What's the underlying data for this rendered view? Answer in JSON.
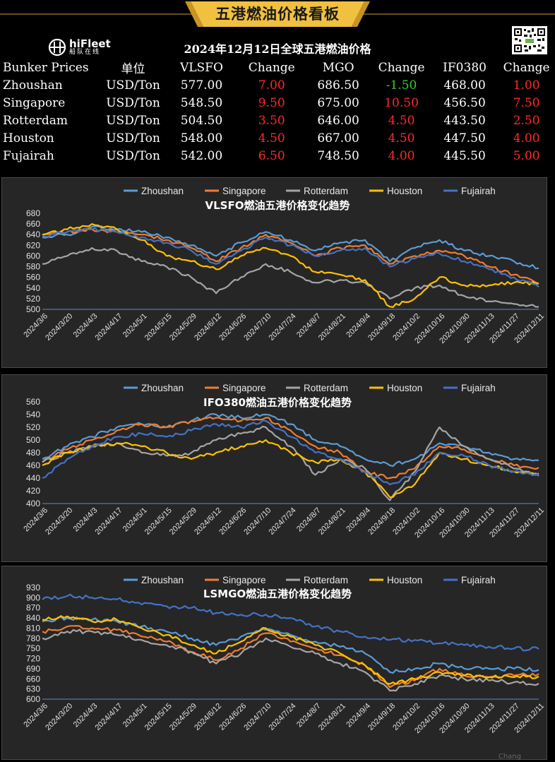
{
  "banner": {
    "title": "五港燃油价格看板"
  },
  "logo": {
    "name": "hiFleet",
    "sub": "船队在线"
  },
  "subtitle": "2024年12月12日全球五港燃油价格",
  "table": {
    "headers": [
      "Bunker Prices",
      "单位",
      "VLSFO",
      "Change",
      "MGO",
      "Change",
      "IF0380",
      "Change"
    ],
    "rows": [
      {
        "port": "Zhoushan",
        "unit": "USD/Ton",
        "vlsfo": "577.00",
        "vlsfo_change": "7.00",
        "mgo": "686.50",
        "mgo_change": "-1.50",
        "ifo380": "468.00",
        "ifo380_change": "1.00"
      },
      {
        "port": "Singapore",
        "unit": "USD/Ton",
        "vlsfo": "548.50",
        "vlsfo_change": "9.50",
        "mgo": "675.00",
        "mgo_change": "10.50",
        "ifo380": "456.50",
        "ifo380_change": "7.50"
      },
      {
        "port": "Rotterdam",
        "unit": "USD/Ton",
        "vlsfo": "504.50",
        "vlsfo_change": "3.50",
        "mgo": "646.00",
        "mgo_change": "4.50",
        "ifo380": "443.50",
        "ifo380_change": "2.50"
      },
      {
        "port": "Houston",
        "unit": "USD/Ton",
        "vlsfo": "548.00",
        "vlsfo_change": "4.50",
        "mgo": "667.00",
        "mgo_change": "4.50",
        "ifo380": "447.50",
        "ifo380_change": "4.00"
      },
      {
        "port": "Fujairah",
        "unit": "USD/Ton",
        "vlsfo": "542.00",
        "vlsfo_change": "6.50",
        "mgo": "748.50",
        "mgo_change": "4.00",
        "ifo380": "445.50",
        "ifo380_change": "5.00"
      }
    ]
  },
  "colors": {
    "up": "#ff2a2a",
    "down": "#33cc33",
    "banner": "#f0c040",
    "gridline": "#3a3a3a",
    "axis": "#bbbbbb"
  },
  "footer": "Chang",
  "chart_data": [
    {
      "type": "line",
      "title": "VLSFO燃油五港价格变化趋势",
      "xlabel": "",
      "ylabel": "",
      "x_ticks": [
        "2024/3/6",
        "2024/3/20",
        "2024/4/3",
        "2024/4/17",
        "2024/5/1",
        "2024/5/15",
        "2024/5/29",
        "2024/6/12",
        "2024/6/26",
        "2024/7/10",
        "2024/7/24",
        "2024/8/7",
        "2024/8/21",
        "2024/9/4",
        "2024/9/18",
        "2024/10/2",
        "2024/10/16",
        "2024/10/30",
        "2024/11/13",
        "2024/11/27",
        "2024/12/11"
      ],
      "y_ticks": [
        500,
        520,
        540,
        560,
        580,
        600,
        620,
        640,
        660,
        680
      ],
      "ylim": [
        500,
        680
      ],
      "grid": true,
      "legend": "top",
      "series": [
        {
          "name": "Zhoushan",
          "color": "#5b9bd5",
          "values": [
            635,
            640,
            655,
            650,
            645,
            635,
            620,
            600,
            625,
            645,
            630,
            610,
            625,
            630,
            590,
            615,
            630,
            610,
            600,
            590,
            577
          ]
        },
        {
          "name": "Singapore",
          "color": "#ed7d31",
          "values": [
            640,
            645,
            650,
            645,
            640,
            630,
            615,
            590,
            615,
            640,
            625,
            600,
            615,
            620,
            585,
            600,
            610,
            600,
            580,
            565,
            548.5
          ]
        },
        {
          "name": "Rotterdam",
          "color": "#a5a5a5",
          "values": [
            585,
            600,
            615,
            610,
            590,
            580,
            560,
            530,
            560,
            585,
            570,
            550,
            555,
            550,
            520,
            540,
            545,
            525,
            515,
            510,
            504.5
          ]
        },
        {
          "name": "Houston",
          "color": "#ffc000",
          "values": [
            640,
            650,
            660,
            650,
            630,
            600,
            590,
            575,
            600,
            615,
            600,
            570,
            565,
            555,
            505,
            520,
            560,
            545,
            545,
            550,
            548
          ]
        },
        {
          "name": "Fujairah",
          "color": "#4472c4",
          "values": [
            638,
            645,
            650,
            645,
            635,
            625,
            610,
            585,
            610,
            635,
            620,
            600,
            610,
            615,
            580,
            595,
            605,
            590,
            575,
            560,
            542
          ]
        }
      ]
    },
    {
      "type": "line",
      "title": "IFO380燃油五港价格变化趋势",
      "xlabel": "",
      "ylabel": "",
      "x_ticks": [
        "2024/3/6",
        "2024/3/20",
        "2024/4/3",
        "2024/4/17",
        "2024/5/1",
        "2024/5/15",
        "2024/5/29",
        "2024/6/12",
        "2024/6/26",
        "2024/7/10",
        "2024/7/24",
        "2024/8/7",
        "2024/8/21",
        "2024/9/4",
        "2024/9/18",
        "2024/10/2",
        "2024/10/16",
        "2024/10/30",
        "2024/11/13",
        "2024/11/27",
        "2024/12/11"
      ],
      "y_ticks": [
        400,
        420,
        440,
        460,
        480,
        500,
        520,
        540,
        560
      ],
      "ylim": [
        400,
        560
      ],
      "grid": true,
      "legend": "top",
      "series": [
        {
          "name": "Zhoushan",
          "color": "#5b9bd5",
          "values": [
            470,
            490,
            505,
            520,
            525,
            520,
            530,
            540,
            535,
            540,
            525,
            500,
            490,
            470,
            460,
            470,
            495,
            490,
            480,
            470,
            468
          ]
        },
        {
          "name": "Singapore",
          "color": "#ed7d31",
          "values": [
            465,
            485,
            500,
            515,
            525,
            520,
            530,
            535,
            530,
            535,
            515,
            490,
            480,
            450,
            440,
            455,
            490,
            485,
            470,
            460,
            456.5
          ]
        },
        {
          "name": "Rotterdam",
          "color": "#a5a5a5",
          "values": [
            465,
            480,
            490,
            495,
            480,
            475,
            480,
            500,
            510,
            520,
            490,
            445,
            470,
            455,
            405,
            450,
            520,
            490,
            470,
            455,
            443.5
          ]
        },
        {
          "name": "Houston",
          "color": "#ffc000",
          "values": [
            460,
            480,
            490,
            495,
            490,
            480,
            470,
            480,
            490,
            500,
            480,
            465,
            470,
            450,
            410,
            430,
            480,
            470,
            460,
            450,
            447.5
          ]
        },
        {
          "name": "Fujairah",
          "color": "#4472c4",
          "values": [
            440,
            470,
            490,
            505,
            510,
            505,
            515,
            525,
            520,
            530,
            505,
            480,
            470,
            450,
            430,
            445,
            480,
            475,
            460,
            450,
            445.5
          ]
        }
      ]
    },
    {
      "type": "line",
      "title": "LSMGO燃油五港价格变化趋势",
      "xlabel": "",
      "ylabel": "",
      "x_ticks": [
        "2024/3/6",
        "2024/3/20",
        "2024/4/3",
        "2024/4/17",
        "2024/5/1",
        "2024/5/15",
        "2024/5/29",
        "2024/6/12",
        "2024/6/26",
        "2024/7/10",
        "2024/7/24",
        "2024/8/7",
        "2024/8/21",
        "2024/9/4",
        "2024/9/18",
        "2024/10/2",
        "2024/10/16",
        "2024/10/30",
        "2024/11/13",
        "2024/11/27",
        "2024/12/11"
      ],
      "y_ticks": [
        600,
        630,
        660,
        690,
        720,
        750,
        780,
        810,
        840,
        870,
        900,
        930
      ],
      "ylim": [
        600,
        930
      ],
      "grid": true,
      "legend": "top",
      "series": [
        {
          "name": "Zhoushan",
          "color": "#5b9bd5",
          "values": [
            830,
            840,
            835,
            830,
            815,
            800,
            780,
            760,
            785,
            805,
            790,
            770,
            755,
            735,
            680,
            690,
            705,
            690,
            690,
            690,
            686.5
          ]
        },
        {
          "name": "Singapore",
          "color": "#ed7d31",
          "values": [
            800,
            815,
            810,
            805,
            785,
            770,
            740,
            715,
            750,
            795,
            770,
            750,
            730,
            700,
            635,
            655,
            690,
            670,
            665,
            670,
            675
          ]
        },
        {
          "name": "Rotterdam",
          "color": "#a5a5a5",
          "values": [
            780,
            800,
            800,
            790,
            775,
            760,
            740,
            705,
            735,
            780,
            755,
            735,
            705,
            680,
            625,
            645,
            670,
            660,
            655,
            650,
            646
          ]
        },
        {
          "name": "Houston",
          "color": "#ffc000",
          "values": [
            835,
            845,
            830,
            835,
            810,
            790,
            760,
            735,
            770,
            810,
            785,
            760,
            735,
            700,
            645,
            660,
            680,
            670,
            665,
            665,
            667
          ]
        },
        {
          "name": "Fujairah",
          "color": "#4472c4",
          "values": [
            895,
            905,
            900,
            895,
            880,
            875,
            870,
            855,
            850,
            850,
            840,
            815,
            800,
            785,
            775,
            775,
            765,
            760,
            755,
            750,
            748.5
          ]
        }
      ]
    }
  ]
}
